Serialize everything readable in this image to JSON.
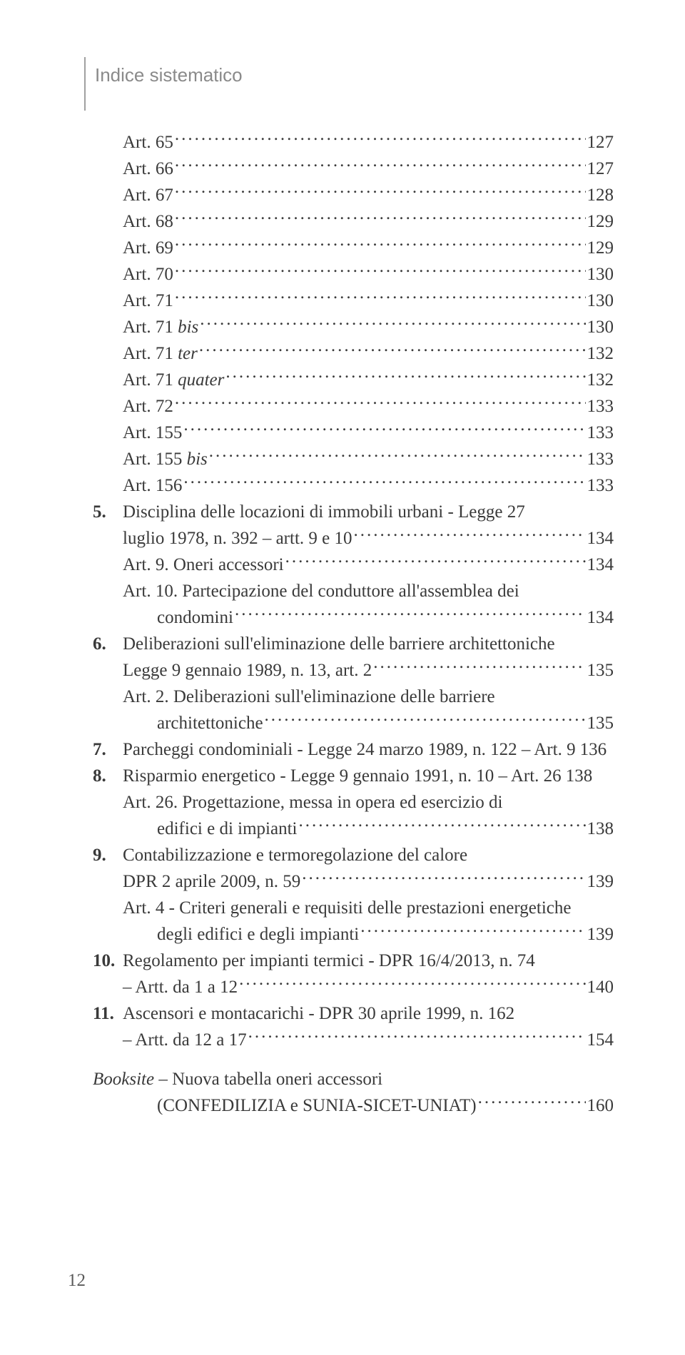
{
  "header": {
    "title": "Indice sistematico"
  },
  "pageNumber": "12",
  "toc": {
    "simpleArts": [
      {
        "label": "Art. 65",
        "page": "127"
      },
      {
        "label": "Art. 66",
        "page": "127"
      },
      {
        "label": "Art. 67",
        "page": "128"
      },
      {
        "label": "Art. 68",
        "page": "129"
      },
      {
        "label": "Art. 69",
        "page": "129"
      },
      {
        "label": "Art. 70",
        "page": "130"
      },
      {
        "label": "Art. 71",
        "page": "130"
      },
      {
        "label_pre": "Art. 71 ",
        "label_it": "bis",
        "page": "130"
      },
      {
        "label_pre": "Art. 71 ",
        "label_it": "ter",
        "page": "132"
      },
      {
        "label_pre": "Art. 71 ",
        "label_it": "quater",
        "page": "132"
      },
      {
        "label": "Art. 72",
        "page": "133"
      },
      {
        "label": "Art. 155",
        "page": "133"
      },
      {
        "label_pre": "Art. 155 ",
        "label_it": "bis",
        "page": "133"
      },
      {
        "label": "Art. 156",
        "page": "133"
      }
    ],
    "s5": {
      "num": "5.",
      "l1a": "Disciplina delle locazioni di immobili urbani - Legge 27",
      "l1b": "luglio 1978, n. 392 – artt. 9 e 10",
      "l1p": "134",
      "a9": "Art. 9. Oneri accessori",
      "a9p": "134",
      "a10a": "Art. 10. Partecipazione del conduttore all'assemblea dei",
      "a10b": "condomini",
      "a10p": "134"
    },
    "s6": {
      "num": "6.",
      "l1a": "Deliberazioni sull'eliminazione delle barriere architettoniche",
      "l1b": "Legge 9 gennaio 1989, n. 13, art. 2",
      "l1p": "135",
      "a2a": "Art. 2. Deliberazioni sull'eliminazione delle barriere",
      "a2b": "architettoniche",
      "a2p": "135"
    },
    "s7": {
      "num": "7.",
      "t": "Parcheggi condominiali - Legge 24 marzo 1989, n. 122 – Art. 9",
      "p": "136"
    },
    "s8": {
      "num": "8.",
      "t": "Risparmio energetico - Legge 9 gennaio 1991, n. 10 – Art. 26",
      "p": "138",
      "a26a": "Art. 26. Progettazione, messa in opera ed esercizio di",
      "a26b": "edifici e di impianti",
      "a26p": "138"
    },
    "s9": {
      "num": "9.",
      "l1a": "Contabilizzazione e termoregolazione del calore",
      "l1b": "DPR 2 aprile 2009, n. 59",
      "l1p": "139",
      "a4a": "Art. 4 - Criteri generali e requisiti delle prestazioni energetiche",
      "a4b": "degli edifici e degli impianti",
      "a4p": "139"
    },
    "s10": {
      "num": "10.",
      "l1a": "Regolamento per impianti termici - DPR 16/4/2013, n. 74",
      "l1b": "– Artt. da 1 a 12",
      "l1p": "140"
    },
    "s11": {
      "num": "11.",
      "l1a": "Ascensori e montacarichi  - DPR 30 aprile 1999, n. 162",
      "l1b": "– Artt. da 12 a 17",
      "l1p": "154"
    },
    "booksite": {
      "pre": "Booksite",
      "rest": " – Nuova tabella oneri accessori",
      "l2": "(CONFEDILIZIA e SUNIA-SICET-UNIAT)",
      "p": "160"
    }
  }
}
